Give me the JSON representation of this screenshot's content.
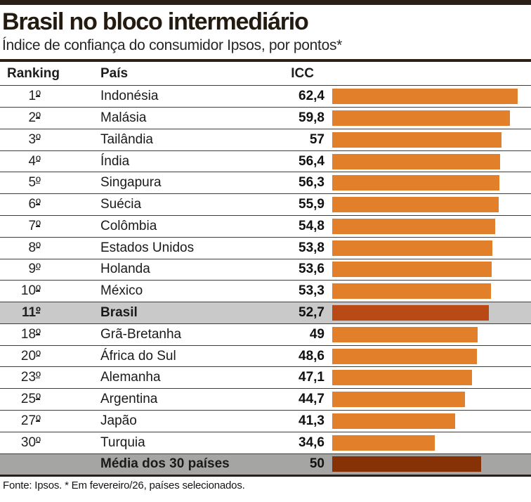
{
  "header": {
    "title": "Brasil no bloco intermediário",
    "subtitle": "Índice de confiança do consumidor Ipsos,  por pontos*"
  },
  "chart_data": {
    "type": "bar",
    "orientation": "horizontal",
    "title": "Brasil no bloco intermediário",
    "subtitle": "Índice de confiança do consumidor Ipsos,  por pontos*",
    "columns": [
      "Ranking",
      "País",
      "ICC"
    ],
    "xlim": [
      0,
      62.4
    ],
    "grid": false,
    "legend": false,
    "rows": [
      {
        "rank": "1º",
        "country": "Indonésia",
        "value": 62.4,
        "label": "62,4",
        "style": "normal"
      },
      {
        "rank": "2º",
        "country": "Malásia",
        "value": 59.8,
        "label": "59,8",
        "style": "normal"
      },
      {
        "rank": "3º",
        "country": "Tailândia",
        "value": 57,
        "label": "57",
        "style": "normal"
      },
      {
        "rank": "4º",
        "country": "Índia",
        "value": 56.4,
        "label": "56,4",
        "style": "normal"
      },
      {
        "rank": "5º",
        "country": "Singapura",
        "value": 56.3,
        "label": "56,3",
        "style": "normal"
      },
      {
        "rank": "6º",
        "country": "Suécia",
        "value": 55.9,
        "label": "55,9",
        "style": "normal"
      },
      {
        "rank": "7º",
        "country": "Colômbia",
        "value": 54.8,
        "label": "54,8",
        "style": "normal"
      },
      {
        "rank": "8º",
        "country": "Estados Unidos",
        "value": 53.8,
        "label": "53,8",
        "style": "normal"
      },
      {
        "rank": "9º",
        "country": "Holanda",
        "value": 53.6,
        "label": "53,6",
        "style": "normal"
      },
      {
        "rank": "10º",
        "country": "México",
        "value": 53.3,
        "label": "53,3",
        "style": "normal"
      },
      {
        "rank": "11º",
        "country": "Brasil",
        "value": 52.7,
        "label": "52,7",
        "style": "brasil"
      },
      {
        "rank": "18º",
        "country": "Grã-Bretanha",
        "value": 49,
        "label": "49",
        "style": "normal"
      },
      {
        "rank": "20º",
        "country": "África do Sul",
        "value": 48.6,
        "label": "48,6",
        "style": "normal"
      },
      {
        "rank": "23º",
        "country": "Alemanha",
        "value": 47.1,
        "label": "47,1",
        "style": "normal"
      },
      {
        "rank": "25º",
        "country": "Argentina",
        "value": 44.7,
        "label": "44,7",
        "style": "normal"
      },
      {
        "rank": "27º",
        "country": "Japão",
        "value": 41.3,
        "label": "41,3",
        "style": "normal"
      },
      {
        "rank": "30º",
        "country": "Turquia",
        "value": 34.6,
        "label": "34,6",
        "style": "normal"
      },
      {
        "rank": "",
        "country": "Média dos 30 países",
        "value": 50,
        "label": "50",
        "style": "media"
      }
    ],
    "source": "Fonte: Ipsos. * Em fevereiro/26, países selecionados."
  },
  "colors": {
    "bar": "#e17f2a",
    "brasil_bar": "#ba4a15",
    "media_bar": "#863106",
    "brasil_row_bg": "#c9c9c9",
    "media_row_bg": "#a5a5a3",
    "rule": "#2b2017"
  },
  "footer": {
    "source": "Fonte: Ipsos. * Em fevereiro/26, países selecionados."
  }
}
